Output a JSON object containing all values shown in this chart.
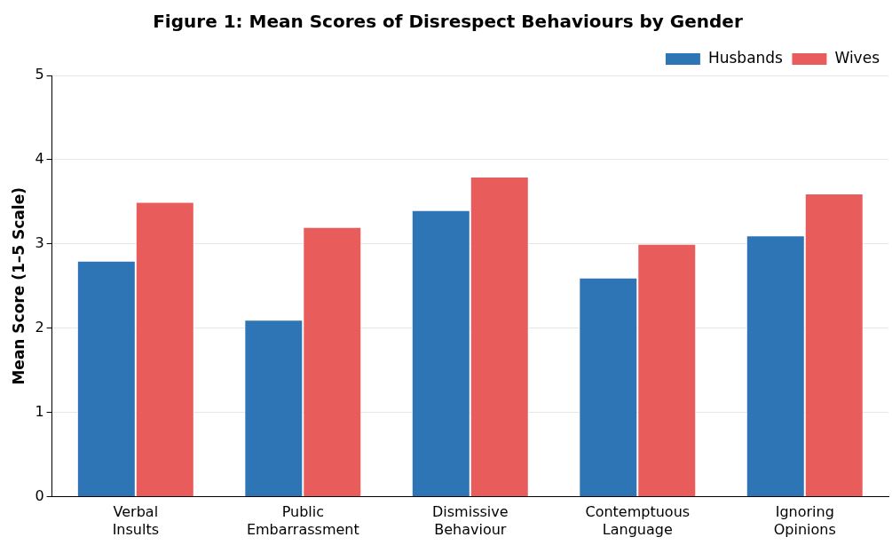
{
  "chart_data": {
    "type": "bar",
    "title": "Figure 1: Mean Scores of Disrespect Behaviours by Gender",
    "ylabel": "Mean Score (1–5 Scale)",
    "categories": [
      "Verbal\nInsults",
      "Public\nEmbarrassment",
      "Dismissive\nBehaviour",
      "Contemptuous\nLanguage",
      "Ignoring\nOpinions"
    ],
    "series": [
      {
        "name": "Husbands",
        "color": "#2e75b6",
        "values": [
          2.8,
          2.1,
          3.4,
          2.6,
          3.1
        ]
      },
      {
        "name": "Wives",
        "color": "#e85c5c",
        "values": [
          3.5,
          3.2,
          3.8,
          3.0,
          3.6
        ]
      }
    ],
    "ylim": [
      0,
      5
    ],
    "yticks": [
      0,
      1,
      2,
      3,
      4,
      5
    ],
    "grid": "y",
    "legend": "top right"
  }
}
